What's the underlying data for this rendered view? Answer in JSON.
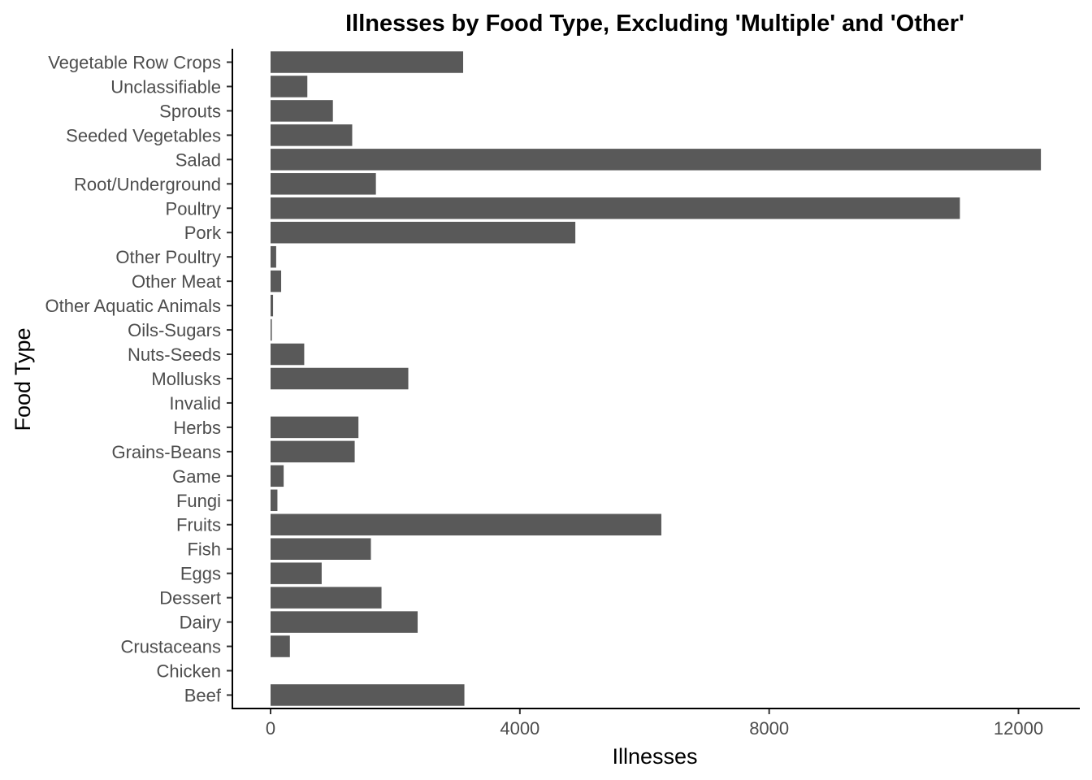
{
  "chart_data": {
    "type": "bar",
    "orientation": "horizontal",
    "title": "Illnesses by Food Type, Excluding 'Multiple' and 'Other'",
    "xlabel": "Illnesses",
    "ylabel": "Food Type",
    "xlim": [
      0,
      12900
    ],
    "xticks": [
      0,
      4000,
      8000,
      12000
    ],
    "grid": false,
    "legend": "none",
    "bar_color": "#595959",
    "categories": [
      "Beef",
      "Chicken",
      "Crustaceans",
      "Dairy",
      "Dessert",
      "Eggs",
      "Fish",
      "Fruits",
      "Fungi",
      "Game",
      "Grains-Beans",
      "Herbs",
      "Invalid",
      "Mollusks",
      "Nuts-Seeds",
      "Oils-Sugars",
      "Other Aquatic Animals",
      "Other Meat",
      "Other Poultry",
      "Pork",
      "Poultry",
      "Root/Underground",
      "Salad",
      "Seeded Vegetables",
      "Sprouts",
      "Unclassifiable",
      "Vegetable Row Crops"
    ],
    "values": [
      3110,
      0,
      310,
      2360,
      1780,
      820,
      1610,
      6270,
      110,
      210,
      1350,
      1410,
      0,
      2210,
      540,
      20,
      40,
      170,
      90,
      4890,
      11060,
      1690,
      12360,
      1310,
      1000,
      590,
      3090
    ]
  }
}
